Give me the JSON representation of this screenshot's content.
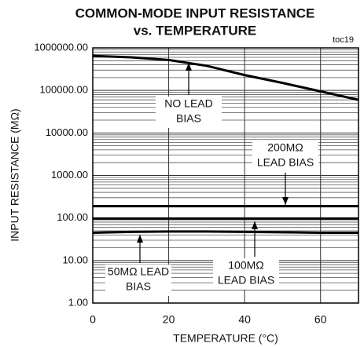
{
  "chart_data": {
    "type": "line",
    "title": [
      "COMMON-MODE INPUT RESISTANCE",
      "vs. TEMPERATURE"
    ],
    "corner_note": "toc19",
    "xlabel": "TEMPERATURE (°C)",
    "ylabel": "INPUT RESISTANCE (MΩ)",
    "log_y": true,
    "grid": true,
    "xlim": [
      0,
      70
    ],
    "xticks": [
      0,
      20,
      40,
      60
    ],
    "ylim": [
      1,
      1000000
    ],
    "yticks": [
      {
        "value": 1,
        "label": "1.00"
      },
      {
        "value": 10,
        "label": "10.00"
      },
      {
        "value": 100,
        "label": "100.00"
      },
      {
        "value": 1000,
        "label": "1000.00"
      },
      {
        "value": 10000,
        "label": "10000.00"
      },
      {
        "value": 100000,
        "label": "100000.00"
      },
      {
        "value": 1000000,
        "label": "1000000.00"
      }
    ],
    "x": [
      0,
      10,
      20,
      30,
      40,
      50,
      60,
      70
    ],
    "series": [
      {
        "label_lines": [
          "NO LEAD",
          "BIAS"
        ],
        "color": "#000000",
        "values": [
          650000,
          600000,
          520000,
          380000,
          230000,
          150000,
          95000,
          60000
        ]
      },
      {
        "label_lines": [
          "200MΩ",
          "LEAD BIAS"
        ],
        "color": "#000000",
        "values": [
          190,
          190,
          190,
          190,
          190,
          190,
          190,
          190
        ]
      },
      {
        "label_lines": [
          "100MΩ",
          "LEAD BIAS"
        ],
        "color": "#000000",
        "values": [
          97,
          97,
          97,
          97,
          97,
          97,
          97,
          97
        ]
      },
      {
        "label_lines": [
          "50MΩ LEAD",
          "BIAS"
        ],
        "color": "#000000",
        "values": [
          45,
          47,
          48,
          48,
          47,
          46,
          45,
          45
        ]
      }
    ]
  }
}
